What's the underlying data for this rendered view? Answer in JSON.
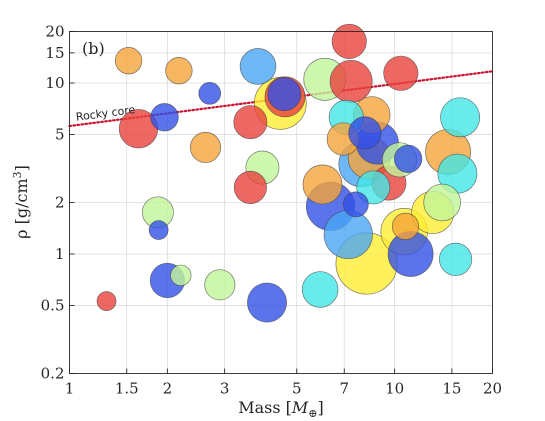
{
  "chart_data": {
    "type": "scatter",
    "panel_label": "(b)",
    "xlabel_main": "Mass [",
    "xlabel_sym": "M",
    "xlabel_sub": "⊕",
    "xlabel_end": "]",
    "ylabel_main": "ρ [g/cm",
    "ylabel_sup": "3",
    "ylabel_end": "]",
    "x_scale": "log",
    "y_scale": "log",
    "xlim": [
      1,
      20
    ],
    "ylim": [
      0.2,
      20
    ],
    "x_ticks": [
      1,
      1.5,
      2,
      3,
      5,
      7,
      10,
      15,
      20
    ],
    "x_tick_labels": [
      "1",
      "1.5",
      "2",
      "3",
      "5",
      "7",
      "10",
      "15",
      "20"
    ],
    "y_ticks": [
      0.2,
      0.5,
      1,
      2,
      5,
      10,
      15,
      20
    ],
    "y_tick_labels": [
      "0.2",
      "0.5",
      "1",
      "2",
      "5",
      "10",
      "15",
      "20"
    ],
    "grid": true,
    "annotations": [
      {
        "text": "Rocky core",
        "x": 1.05,
        "y": 5.7,
        "rotation_follows_line": true
      }
    ],
    "reference_line": {
      "name": "Rocky core",
      "color": "#cc1133",
      "style": "dotted",
      "x": [
        1,
        20
      ],
      "y": [
        5.6,
        11.7
      ]
    },
    "colors": {
      "red": "#e8413c",
      "orange": "#f5a43a",
      "yellow": "#ffee33",
      "lightgreen": "#c2f59a",
      "cyan": "#44e6e6",
      "skyblue": "#4aa6f5",
      "blue": "#3250e6"
    },
    "points": [
      {
        "x": 1.3,
        "y": 0.53,
        "c": "red",
        "s": 0.08
      },
      {
        "x": 1.52,
        "y": 13.5,
        "c": "orange",
        "s": 0.2
      },
      {
        "x": 1.63,
        "y": 5.4,
        "c": "red",
        "s": 0.5
      },
      {
        "x": 1.87,
        "y": 1.75,
        "c": "lightgreen",
        "s": 0.3
      },
      {
        "x": 1.88,
        "y": 1.38,
        "c": "blue",
        "s": 0.08
      },
      {
        "x": 1.96,
        "y": 6.3,
        "c": "blue",
        "s": 0.22
      },
      {
        "x": 2.0,
        "y": 0.7,
        "c": "blue",
        "s": 0.38
      },
      {
        "x": 2.17,
        "y": 11.8,
        "c": "orange",
        "s": 0.2
      },
      {
        "x": 2.2,
        "y": 0.75,
        "c": "lightgreen",
        "s": 0.1
      },
      {
        "x": 2.62,
        "y": 4.2,
        "c": "orange",
        "s": 0.28
      },
      {
        "x": 2.7,
        "y": 8.7,
        "c": "blue",
        "s": 0.12
      },
      {
        "x": 2.9,
        "y": 0.66,
        "c": "lightgreen",
        "s": 0.28
      },
      {
        "x": 3.6,
        "y": 5.9,
        "c": "red",
        "s": 0.35
      },
      {
        "x": 3.6,
        "y": 2.45,
        "c": "red",
        "s": 0.33
      },
      {
        "x": 3.8,
        "y": 12.5,
        "c": "skyblue",
        "s": 0.42
      },
      {
        "x": 3.92,
        "y": 3.2,
        "c": "lightgreen",
        "s": 0.35
      },
      {
        "x": 4.05,
        "y": 0.52,
        "c": "blue",
        "s": 0.52
      },
      {
        "x": 4.45,
        "y": 7.6,
        "c": "yellow",
        "s": 1.0
      },
      {
        "x": 4.6,
        "y": 8.3,
        "c": "red",
        "s": 0.55
      },
      {
        "x": 4.58,
        "y": 8.6,
        "c": "blue",
        "s": 0.35
      },
      {
        "x": 5.9,
        "y": 0.62,
        "c": "cyan",
        "s": 0.42
      },
      {
        "x": 6.0,
        "y": 2.55,
        "c": "orange",
        "s": 0.52
      },
      {
        "x": 6.1,
        "y": 10.5,
        "c": "lightgreen",
        "s": 0.62
      },
      {
        "x": 6.35,
        "y": 1.9,
        "c": "blue",
        "s": 0.85
      },
      {
        "x": 6.95,
        "y": 4.7,
        "c": "orange",
        "s": 0.33
      },
      {
        "x": 7.1,
        "y": 6.3,
        "c": "cyan",
        "s": 0.38
      },
      {
        "x": 7.25,
        "y": 17.5,
        "c": "red",
        "s": 0.38
      },
      {
        "x": 7.2,
        "y": 1.3,
        "c": "skyblue",
        "s": 0.85
      },
      {
        "x": 7.35,
        "y": 10.2,
        "c": "red",
        "s": 0.62
      },
      {
        "x": 7.6,
        "y": 1.95,
        "c": "blue",
        "s": 0.17
      },
      {
        "x": 7.9,
        "y": 3.35,
        "c": "skyblue",
        "s": 0.72
      },
      {
        "x": 8.1,
        "y": 5.1,
        "c": "blue",
        "s": 0.33
      },
      {
        "x": 8.2,
        "y": 0.88,
        "c": "yellow",
        "s": 1.45
      },
      {
        "x": 8.35,
        "y": 3.65,
        "c": "orange",
        "s": 0.62
      },
      {
        "x": 8.5,
        "y": 6.5,
        "c": "orange",
        "s": 0.45
      },
      {
        "x": 8.6,
        "y": 2.45,
        "c": "cyan",
        "s": 0.35
      },
      {
        "x": 8.85,
        "y": 4.45,
        "c": "blue",
        "s": 0.62
      },
      {
        "x": 9.6,
        "y": 2.6,
        "c": "red",
        "s": 0.38
      },
      {
        "x": 10.35,
        "y": 3.55,
        "c": "lightgreen",
        "s": 0.38
      },
      {
        "x": 10.45,
        "y": 11.4,
        "c": "red",
        "s": 0.38
      },
      {
        "x": 10.7,
        "y": 1.35,
        "c": "yellow",
        "s": 0.78
      },
      {
        "x": 10.8,
        "y": 1.45,
        "c": "orange",
        "s": 0.2
      },
      {
        "x": 11.0,
        "y": 3.6,
        "c": "blue",
        "s": 0.22
      },
      {
        "x": 11.2,
        "y": 1.0,
        "c": "blue",
        "s": 0.72
      },
      {
        "x": 13.1,
        "y": 1.75,
        "c": "yellow",
        "s": 0.62
      },
      {
        "x": 14.0,
        "y": 2.0,
        "c": "lightgreen",
        "s": 0.45
      },
      {
        "x": 14.6,
        "y": 3.95,
        "c": "orange",
        "s": 0.72
      },
      {
        "x": 15.4,
        "y": 0.93,
        "c": "cyan",
        "s": 0.33
      },
      {
        "x": 15.6,
        "y": 2.95,
        "c": "cyan",
        "s": 0.52
      },
      {
        "x": 15.9,
        "y": 6.3,
        "c": "cyan",
        "s": 0.52
      }
    ]
  }
}
